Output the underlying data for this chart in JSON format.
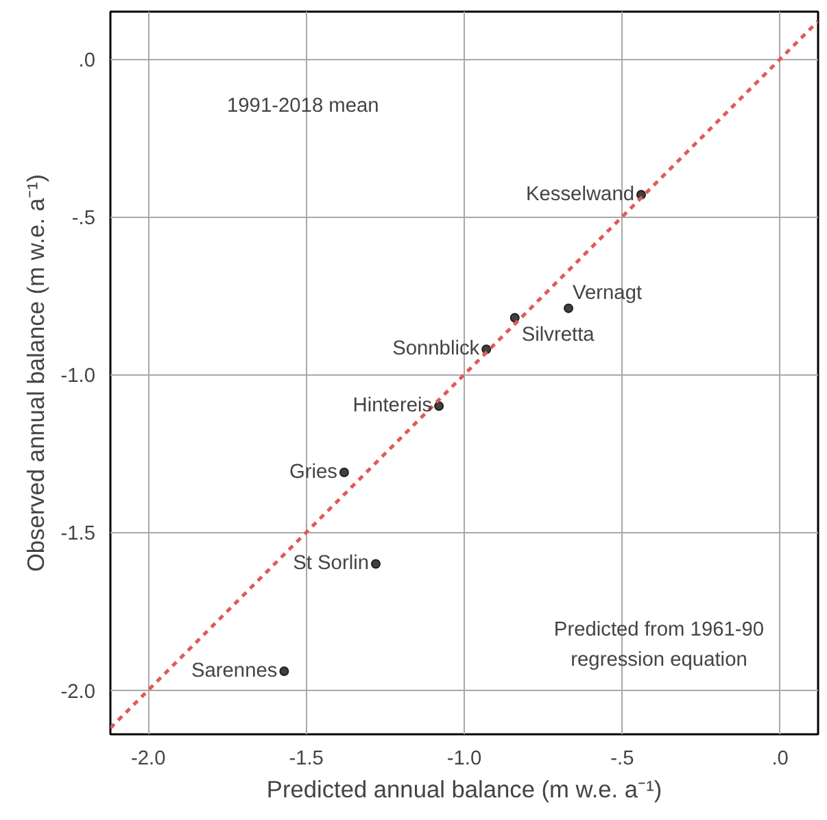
{
  "chart_data": {
    "type": "scatter",
    "xlabel": "Predicted annual balance (m w.e. a⁻¹)",
    "ylabel": "Observed annual balance (m w.e. a⁻¹)",
    "xlim": [
      -2.12,
      0.12
    ],
    "ylim": [
      -2.14,
      0.15
    ],
    "xticks": [
      {
        "value": -2.0,
        "label": "-2.0"
      },
      {
        "value": -1.5,
        "label": "-1.5"
      },
      {
        "value": -1.0,
        "label": "-1.0"
      },
      {
        "value": -0.5,
        "label": "-.5"
      },
      {
        "value": 0,
        "label": ".0"
      }
    ],
    "yticks": [
      {
        "value": -2.0,
        "label": "-2.0"
      },
      {
        "value": -1.5,
        "label": "-1.5"
      },
      {
        "value": -1.0,
        "label": "-1.0"
      },
      {
        "value": -0.5,
        "label": "-.5"
      },
      {
        "value": 0,
        "label": ".0"
      }
    ],
    "grid": true,
    "series": [
      {
        "marker": "circle",
        "color": "#404040",
        "x": [
          -0.44,
          -0.67,
          -0.84,
          -0.93,
          -1.08,
          -1.38,
          -1.28,
          -1.57
        ],
        "values": [
          -0.43,
          -0.79,
          -0.82,
          -0.92,
          -1.1,
          -1.31,
          -1.6,
          -1.94
        ]
      },
      {
        "type": "line",
        "color": "#e05a5a",
        "line_style": "dashed",
        "x": [
          -2.12,
          0.12
        ],
        "values": [
          -2.12,
          0.12
        ]
      }
    ],
    "annotations": [
      "1991-2018 mean",
      "Predicted from 1961-90\nregression equation",
      {
        "text": "Kesselwand",
        "x": -0.44,
        "y": -0.43
      },
      {
        "text": "Vernagt",
        "x": -0.67,
        "y": -0.79
      },
      {
        "text": "Silvretta",
        "x": -0.84,
        "y": -0.82
      },
      {
        "text": "Sonnblick",
        "x": -0.93,
        "y": -0.92
      },
      {
        "text": "Hintereis",
        "x": -1.08,
        "y": -1.1
      },
      {
        "text": "Gries",
        "x": -1.38,
        "y": -1.31
      },
      {
        "text": "St Sorlin",
        "x": -1.28,
        "y": -1.6
      },
      {
        "text": "Sarennes",
        "x": -1.57,
        "y": -1.94
      }
    ]
  }
}
